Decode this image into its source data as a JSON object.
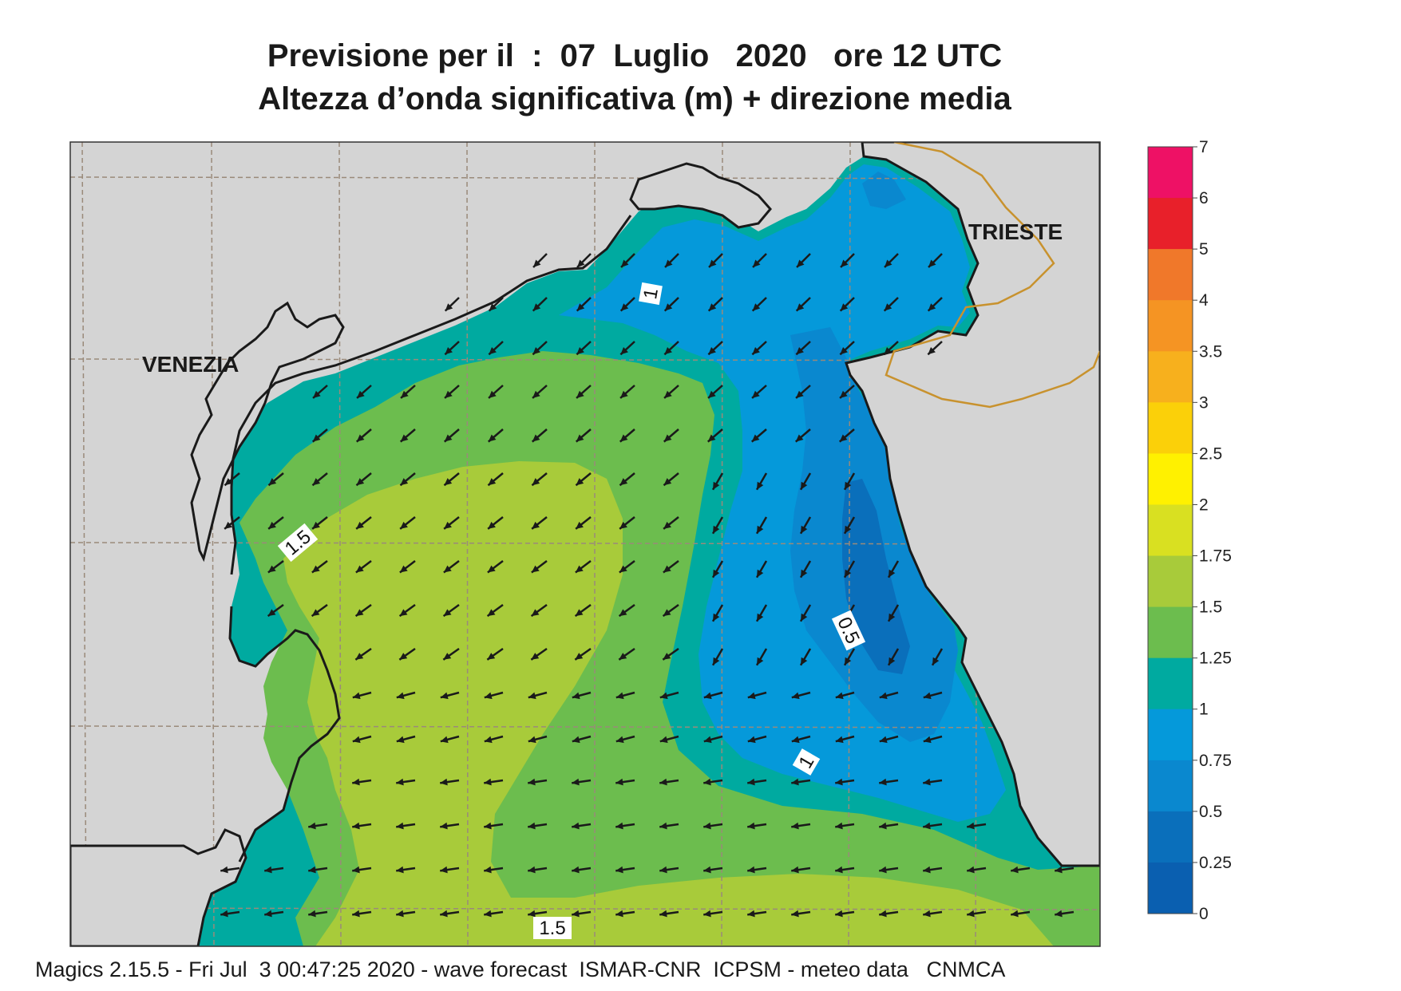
{
  "title": {
    "line1": "Previsione per il  :  07  Luglio   2020   ore 12 UTC",
    "line2": "Altezza d’onda significativa (m) + direzione media"
  },
  "cities": [
    {
      "name": "VENEZIA"
    },
    {
      "name": "TRIESTE"
    }
  ],
  "contour_labels": [
    "1",
    "1.5",
    "0.5",
    "1",
    "1.5"
  ],
  "legend": {
    "ticks": [
      "7",
      "6",
      "5",
      "4",
      "3.5",
      "3",
      "2.5",
      "2",
      "1.75",
      "1.5",
      "1.25",
      "1",
      "0.75",
      "0.5",
      "0.25",
      "0"
    ],
    "colors": [
      "#ee1165",
      "#e8202a",
      "#f0782a",
      "#f59423",
      "#f7b01d",
      "#fbd009",
      "#fff100",
      "#d9e021",
      "#a8cb3a",
      "#6cbd4e",
      "#00aaa0",
      "#0599da",
      "#0a88cf",
      "#0a6fbb",
      "#0a5fb0"
    ]
  },
  "map_colors": {
    "land": "#d4d4d4",
    "coast": "#1a1a1a",
    "border": "#c8922e",
    "grid": "#9a8a7a",
    "arrow": "#1a1a1a"
  },
  "wave_direction": "south-west / west",
  "footer": "Magics 2.15.5 - Fri Jul  3 00:47:25 2020 - wave forecast  ISMAR-CNR  ICPSM - meteo data   CNMCA"
}
